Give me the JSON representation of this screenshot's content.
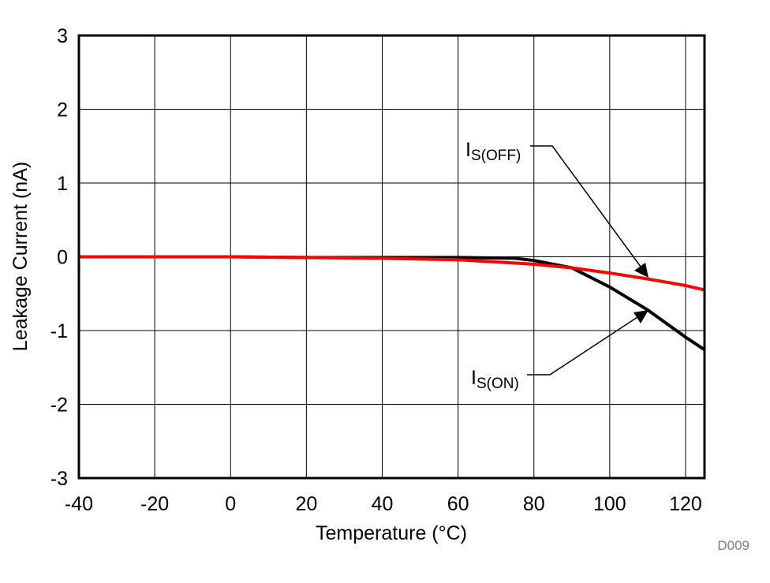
{
  "chart_data": {
    "type": "line",
    "title": "",
    "xlabel": "Temperature (°C)",
    "ylabel": "Leakage Current (nA)",
    "xlim": [
      -40,
      125
    ],
    "ylim": [
      -3,
      3
    ],
    "xticks": [
      -40,
      -20,
      0,
      20,
      40,
      60,
      80,
      100,
      120
    ],
    "yticks": [
      3,
      2,
      1,
      0,
      -1,
      -2,
      -3
    ],
    "grid": true,
    "watermark": "D009",
    "series": [
      {
        "name": "IS(OFF)",
        "label_main": "I",
        "label_sub": "S(OFF)",
        "color": "#ff0000",
        "x": [
          -40,
          -20,
          0,
          20,
          40,
          60,
          80,
          90,
          100,
          110,
          120,
          125
        ],
        "y": [
          0.0,
          0.0,
          0.0,
          -0.01,
          -0.02,
          -0.04,
          -0.1,
          -0.15,
          -0.22,
          -0.3,
          -0.39,
          -0.45
        ]
      },
      {
        "name": "IS(ON)",
        "label_main": "I",
        "label_sub": "S(ON)",
        "color": "#000000",
        "x": [
          -40,
          -20,
          0,
          20,
          40,
          60,
          75,
          80,
          90,
          100,
          110,
          120,
          125
        ],
        "y": [
          0.0,
          0.0,
          0.0,
          -0.01,
          -0.01,
          -0.01,
          -0.02,
          -0.05,
          -0.15,
          -0.41,
          -0.72,
          -1.09,
          -1.26
        ]
      }
    ]
  }
}
